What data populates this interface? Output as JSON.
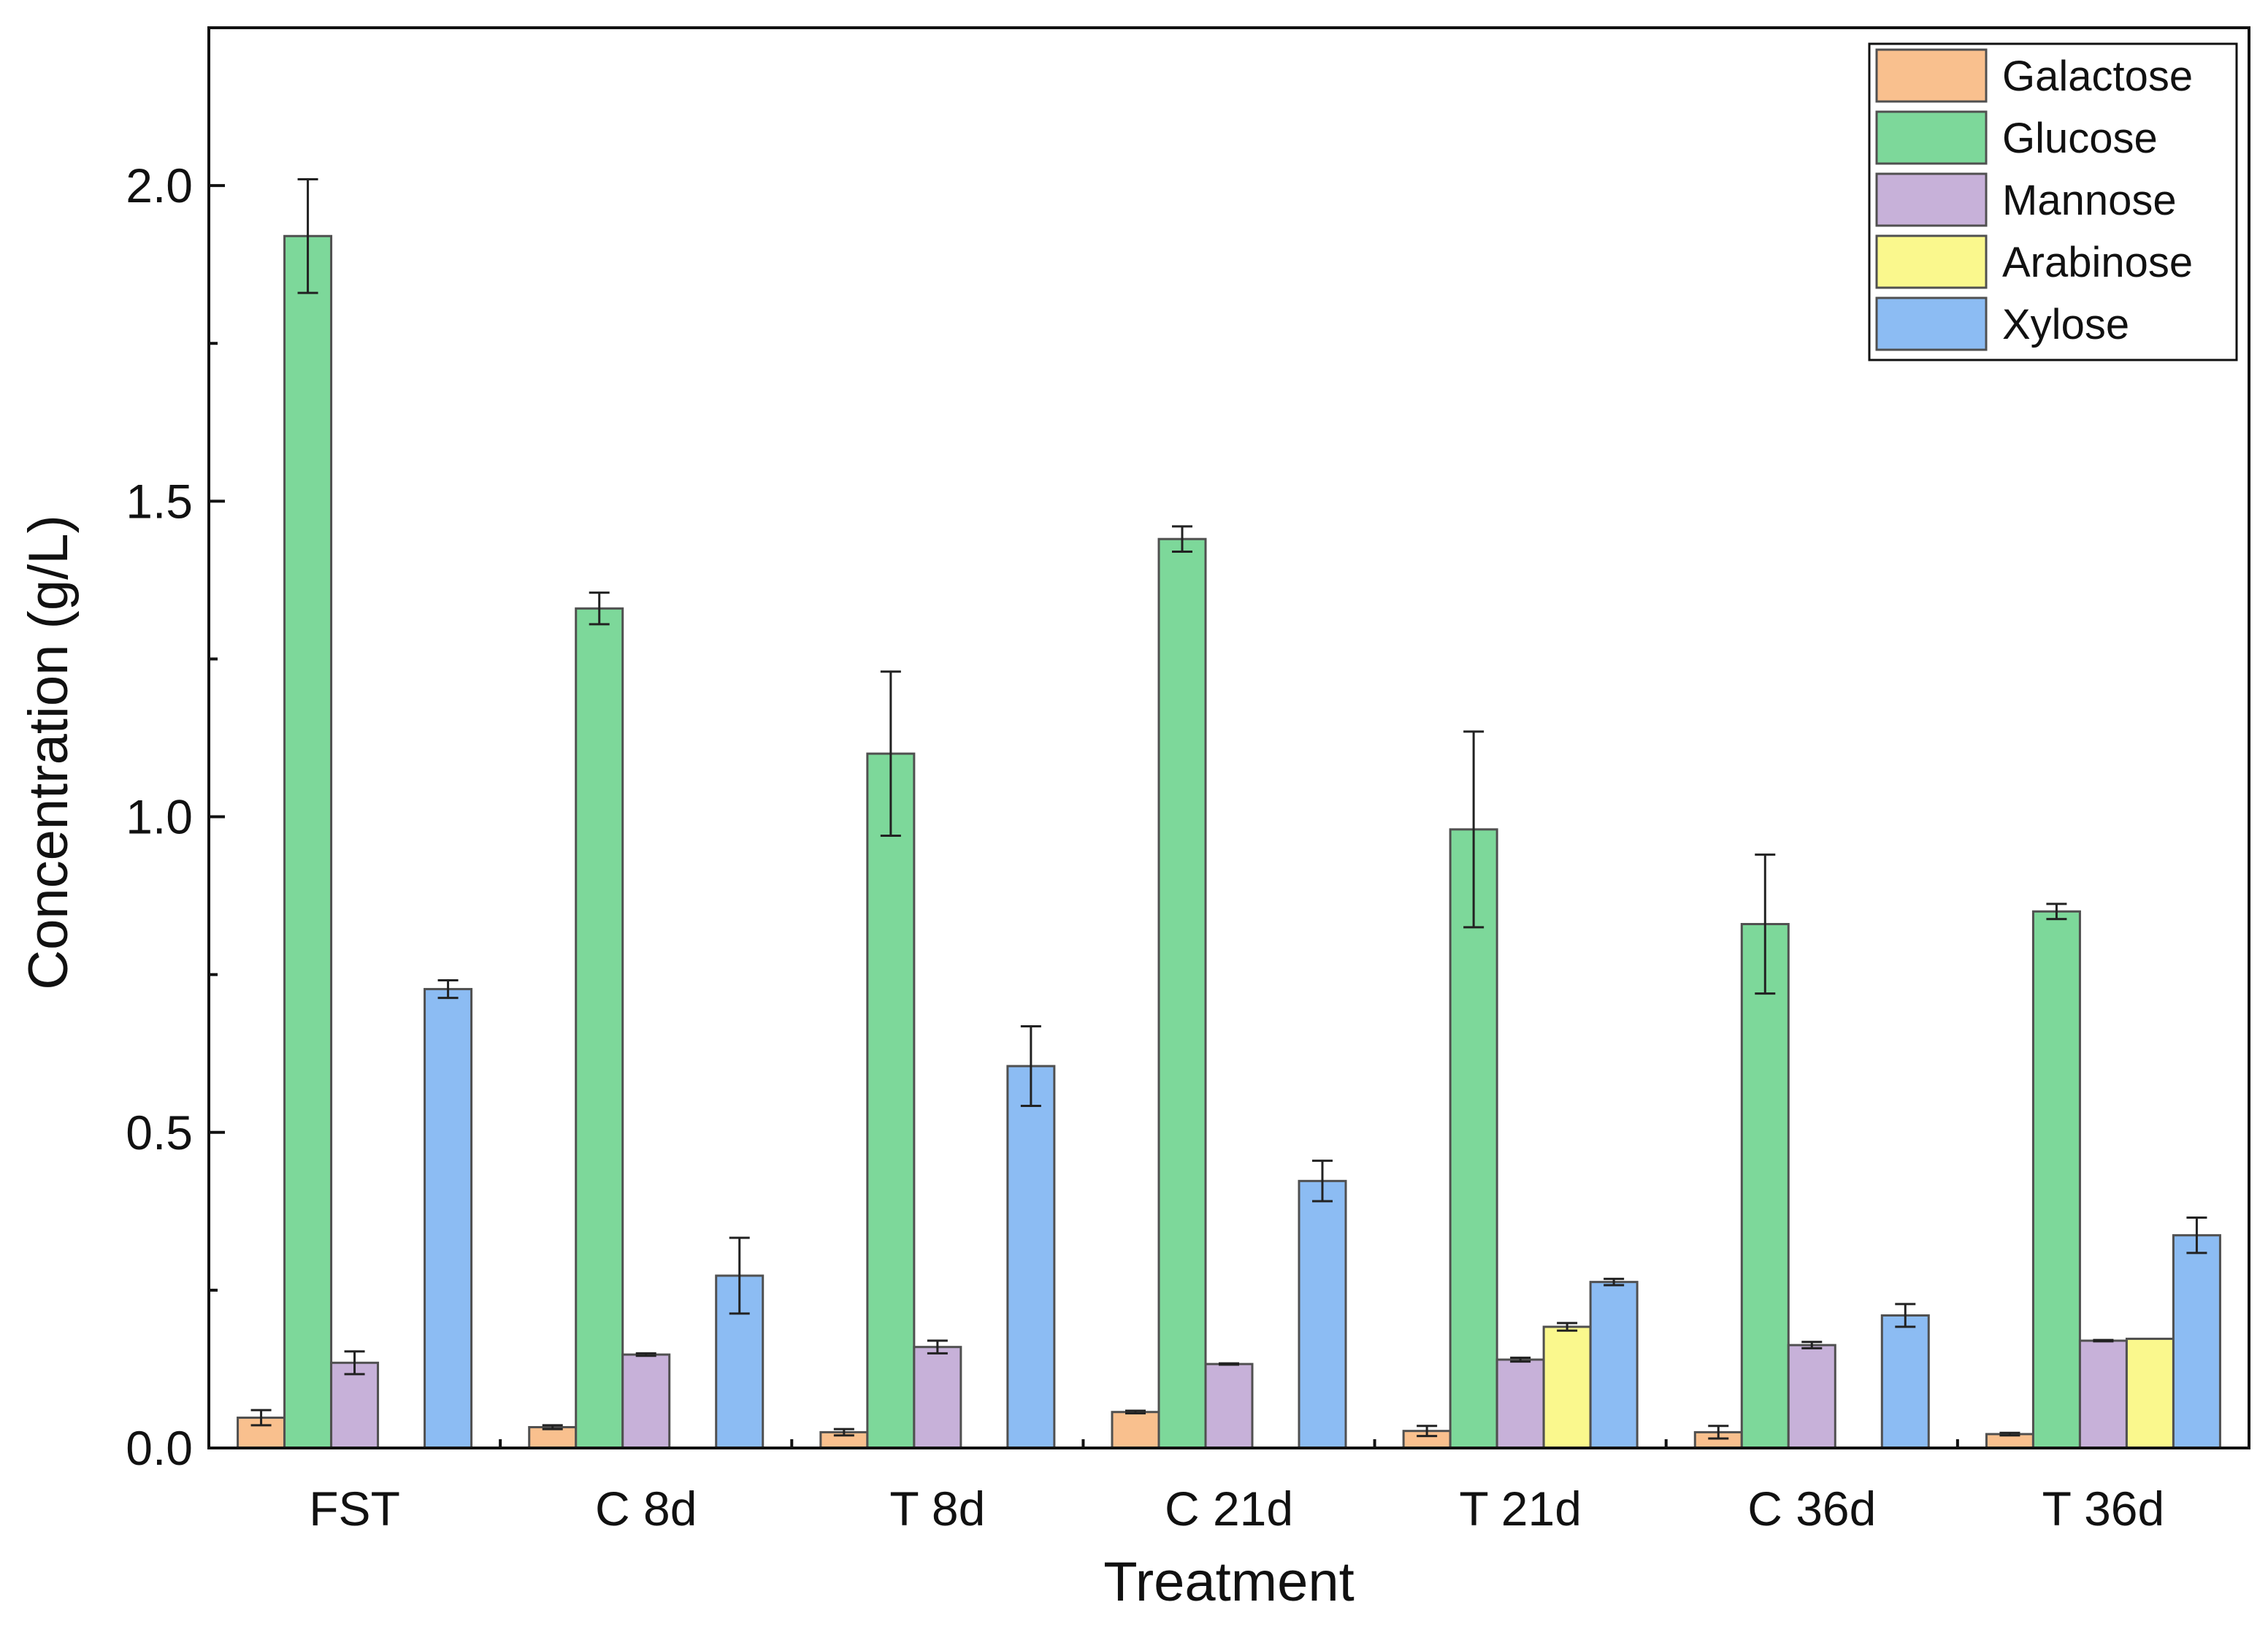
{
  "chart_data": {
    "type": "bar",
    "xlabel": "Treatment",
    "ylabel": "Concentration (g/L)",
    "ylim": [
      0,
      2.25
    ],
    "yticks": [
      "0.0",
      "0.5",
      "1.0",
      "1.5",
      "2.0"
    ],
    "grid": false,
    "legend_position": "top-right",
    "categories": [
      "FST",
      "C 8d",
      "T 8d",
      "C 21d",
      "T 21d",
      "C 36d",
      "T 36d"
    ],
    "series": [
      {
        "name": "Galactose",
        "color": "#F9C08E",
        "values": [
          0.048,
          0.033,
          0.025,
          0.057,
          0.027,
          0.025,
          0.022
        ],
        "errors": [
          0.012,
          0.003,
          0.005,
          0.002,
          0.008,
          0.01,
          0.002
        ]
      },
      {
        "name": "Glucose",
        "color": "#7DD89A",
        "values": [
          1.92,
          1.33,
          1.1,
          1.44,
          0.98,
          0.83,
          0.85
        ],
        "errors": [
          0.09,
          0.025,
          0.13,
          0.02,
          0.155,
          0.11,
          0.012
        ]
      },
      {
        "name": "Mannose",
        "color": "#C7B1D9",
        "values": [
          0.135,
          0.148,
          0.16,
          0.133,
          0.14,
          0.163,
          0.17
        ],
        "errors": [
          0.018,
          0.002,
          0.01,
          0.001,
          0.003,
          0.005,
          0.001
        ]
      },
      {
        "name": "Arabinose",
        "color": "#FAF88D",
        "values": [
          null,
          null,
          null,
          null,
          0.192,
          null,
          0.173
        ],
        "errors": [
          null,
          null,
          null,
          null,
          0.006,
          null,
          0
        ]
      },
      {
        "name": "Xylose",
        "color": "#8CBCF3",
        "values": [
          0.727,
          0.273,
          0.605,
          0.423,
          0.263,
          0.21,
          0.337
        ],
        "errors": [
          0.014,
          0.06,
          0.063,
          0.032,
          0.005,
          0.018,
          0.028
        ]
      }
    ]
  }
}
